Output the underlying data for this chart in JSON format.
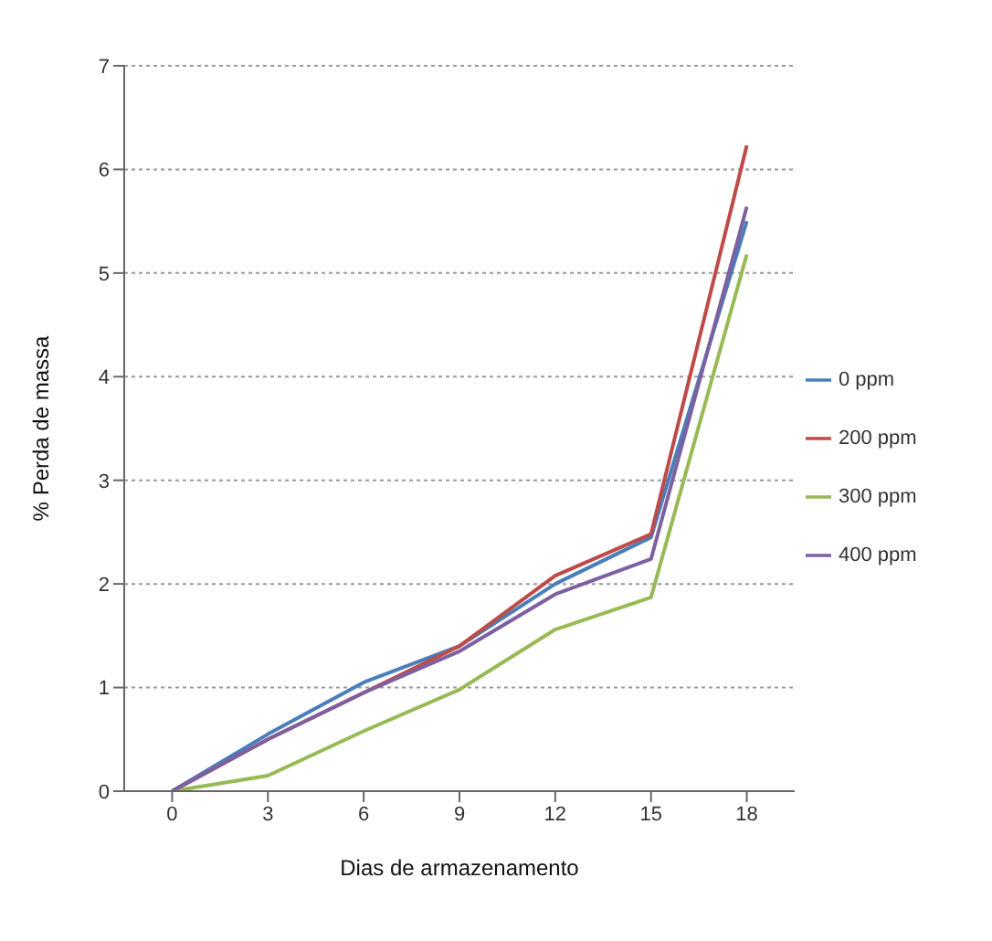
{
  "chart_data": {
    "type": "line",
    "xlabel": "Dias de armazenamento",
    "ylabel": "% Perda de massa",
    "categories": [
      "0",
      "3",
      "6",
      "9",
      "12",
      "15",
      "18"
    ],
    "series": [
      {
        "name": "0 ppm",
        "color": "#4a7ebb",
        "values": [
          0,
          0.55,
          1.05,
          1.4,
          2.0,
          2.45,
          5.5
        ]
      },
      {
        "name": "200 ppm",
        "color": "#be4b48",
        "values": [
          0,
          0.5,
          0.95,
          1.4,
          2.08,
          2.48,
          6.23
        ]
      },
      {
        "name": "300 ppm",
        "color": "#98b954",
        "values": [
          0,
          0.15,
          0.58,
          0.98,
          1.56,
          1.87,
          5.18
        ]
      },
      {
        "name": "400 ppm",
        "color": "#7d60a0",
        "values": [
          0,
          0.5,
          0.95,
          1.35,
          1.9,
          2.24,
          5.64
        ]
      }
    ],
    "ylim": [
      0,
      7
    ],
    "yticks": [
      0,
      1,
      2,
      3,
      4,
      5,
      6,
      7
    ],
    "grid": "y",
    "legend": "right",
    "marker": "none",
    "line_style": "solid"
  }
}
